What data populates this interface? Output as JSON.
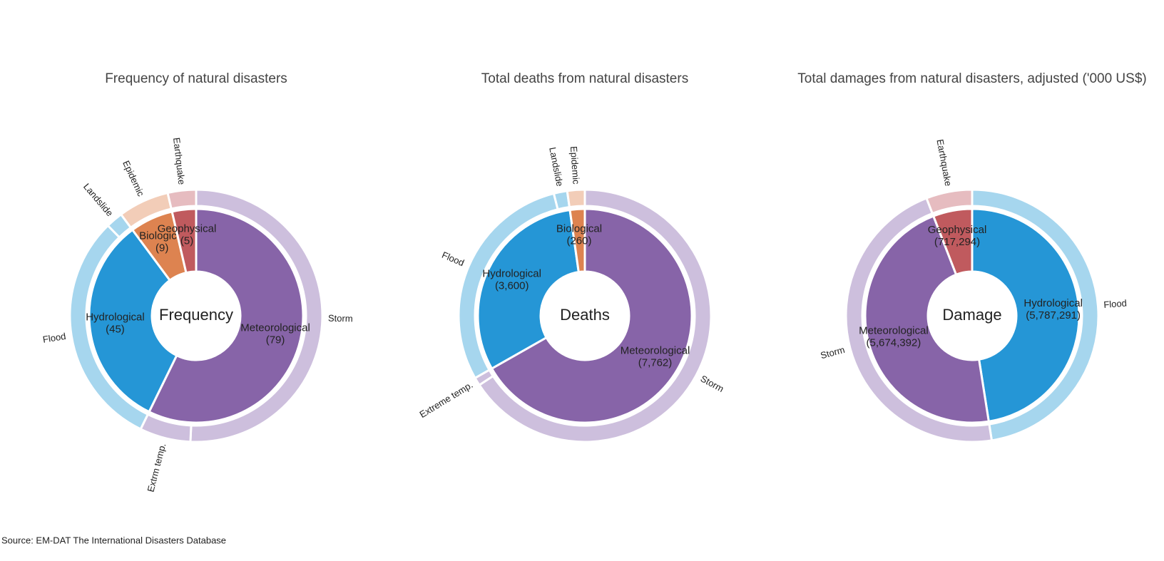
{
  "chart_data": [
    {
      "type": "sunburst",
      "title": "Frequency of natural disasters",
      "center_label": "Frequency",
      "groups": [
        {
          "name": "Meteorological",
          "value": 79,
          "value_label": "(79)",
          "color": "#8764a8",
          "children": [
            {
              "name": "Storm",
              "value": 70,
              "color": "#cdbfdd"
            },
            {
              "name": "Extrm temp.",
              "value": 9,
              "color": "#cdbfdd"
            }
          ]
        },
        {
          "name": "Hydrological",
          "value": 45,
          "value_label": "(45)",
          "color": "#2596d6",
          "children": [
            {
              "name": "Flood",
              "value": 42,
              "color": "#a6d6ee"
            },
            {
              "name": "Landslide",
              "value": 3,
              "color": "#a6d6ee"
            }
          ]
        },
        {
          "name": "Biological",
          "value": 9,
          "value_label": "(9)",
          "color": "#dd8350",
          "children": [
            {
              "name": "Epidemic",
              "value": 9,
              "color": "#f2cdb8"
            }
          ]
        },
        {
          "name": "Geophysical",
          "value": 5,
          "value_label": "(5)",
          "color": "#c05a5e",
          "children": [
            {
              "name": "Earthquake",
              "value": 5,
              "color": "#e6bcc0"
            }
          ]
        }
      ]
    },
    {
      "type": "sunburst",
      "title": "Total deaths from natural disasters",
      "center_label": "Deaths",
      "groups": [
        {
          "name": "Meteorological",
          "value": 7762,
          "value_label": "(7,762)",
          "color": "#8764a8",
          "children": [
            {
              "name": "Storm",
              "value": 7642,
              "color": "#cdbfdd"
            },
            {
              "name": "Extreme temp.",
              "value": 120,
              "color": "#cdbfdd"
            }
          ]
        },
        {
          "name": "Hydrological",
          "value": 3600,
          "value_label": "(3,600)",
          "color": "#2596d6",
          "children": [
            {
              "name": "Flood",
              "value": 3400,
              "color": "#a6d6ee"
            },
            {
              "name": "Landslide",
              "value": 200,
              "color": "#a6d6ee"
            }
          ]
        },
        {
          "name": "Biological",
          "value": 260,
          "value_label": "(260)",
          "color": "#dd8350",
          "children": [
            {
              "name": "Epidemic",
              "value": 260,
              "color": "#f2cdb8"
            }
          ]
        }
      ]
    },
    {
      "type": "sunburst",
      "title": "Total damages from natural disasters, adjusted ('000 US$)",
      "center_label": "Damage",
      "groups": [
        {
          "name": "Hydrological",
          "value": 5787291,
          "value_label": "(5,787,291)",
          "color": "#2596d6",
          "children": [
            {
              "name": "Flood",
              "value": 5787291,
              "color": "#a6d6ee"
            }
          ]
        },
        {
          "name": "Meteorological",
          "value": 5674392,
          "value_label": "(5,674,392)",
          "color": "#8764a8",
          "children": [
            {
              "name": "Storm",
              "value": 5674392,
              "color": "#cdbfdd"
            }
          ]
        },
        {
          "name": "Geophysical",
          "value": 717294,
          "value_label": "(717,294)",
          "color": "#c05a5e",
          "children": [
            {
              "name": "Earthquake",
              "value": 717294,
              "color": "#e6bcc0"
            }
          ]
        }
      ]
    }
  ],
  "source": "Source: EM-DAT The International Disasters Database"
}
